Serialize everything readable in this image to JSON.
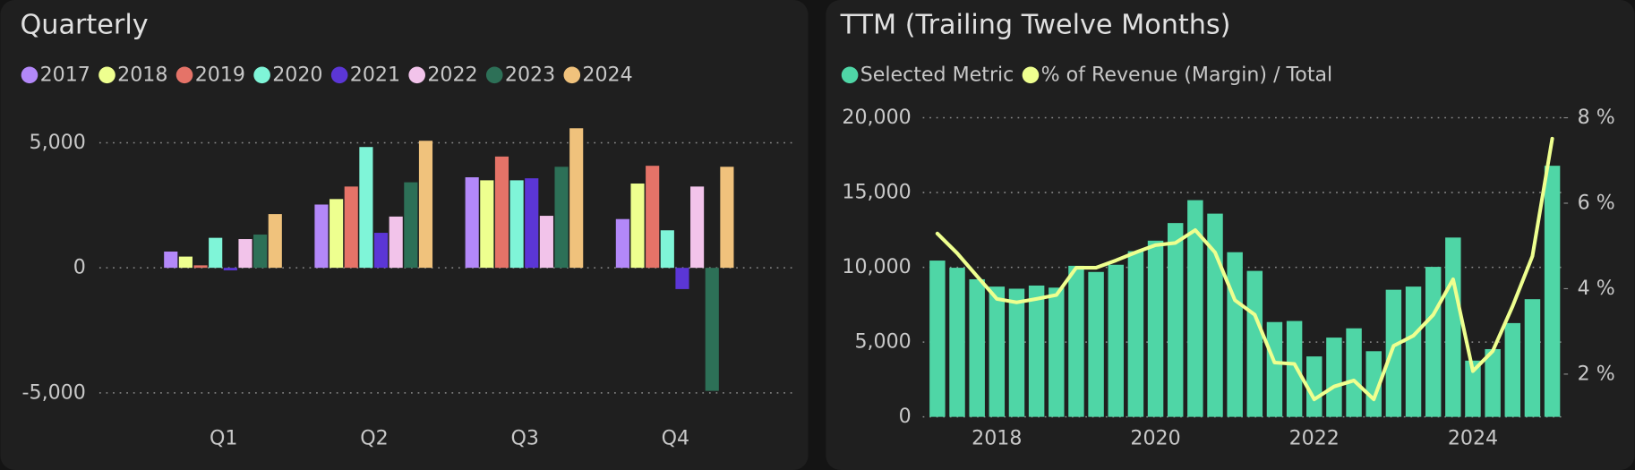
{
  "chart_data": [
    {
      "type": "bar",
      "title": "Quarterly",
      "categories": [
        "Q1",
        "Q2",
        "Q3",
        "Q4"
      ],
      "series": [
        {
          "name": "2017",
          "color": "#b388f9",
          "values": [
            650,
            2530,
            3620,
            1950
          ]
        },
        {
          "name": "2018",
          "color": "#eeff8f",
          "values": [
            450,
            2750,
            3500,
            3370
          ]
        },
        {
          "name": "2019",
          "color": "#e57368",
          "values": [
            100,
            3250,
            4450,
            4080
          ]
        },
        {
          "name": "2020",
          "color": "#7ff5d8",
          "values": [
            1200,
            4830,
            3500,
            1500
          ]
        },
        {
          "name": "2021",
          "color": "#5b36d6",
          "values": [
            -100,
            1400,
            3580,
            -850
          ]
        },
        {
          "name": "2022",
          "color": "#f2c3ea",
          "values": [
            1150,
            2050,
            2080,
            3250
          ]
        },
        {
          "name": "2023",
          "color": "#2d7057",
          "values": [
            1330,
            3420,
            4040,
            -4920
          ]
        },
        {
          "name": "2024",
          "color": "#f0c27c",
          "values": [
            2150,
            5080,
            5580,
            4040
          ]
        }
      ],
      "ylim": [
        -6000,
        6000
      ],
      "yticks": [
        {
          "value": -5000,
          "label": "-5,000"
        },
        0,
        {
          "value": 5000,
          "label": "5,000"
        }
      ],
      "grid": true
    },
    {
      "type": "bar_line",
      "title": "TTM (Trailing Twelve Months)",
      "categories": [
        null,
        null,
        null,
        "2018",
        null,
        null,
        null,
        null,
        null,
        null,
        null,
        "2020",
        null,
        null,
        null,
        null,
        null,
        null,
        null,
        "2022",
        null,
        null,
        null,
        null,
        null,
        null,
        null,
        "2024",
        null,
        null,
        null,
        null
      ],
      "series": [
        {
          "name": "Selected Metric",
          "color": "#4fd6a6",
          "type": "bar",
          "values": [
            10450,
            9970,
            9200,
            8710,
            8570,
            8780,
            8640,
            10100,
            9690,
            10170,
            11080,
            11780,
            12960,
            14490,
            13590,
            11010,
            9760,
            6340,
            6410,
            4040,
            5300,
            5920,
            4390,
            8500,
            8710,
            10030,
            11990,
            3760,
            4530,
            6270,
            7870,
            16790
          ]
        },
        {
          "name": "% of Revenue (Margin) / Total",
          "color": "#eeff8f",
          "type": "line",
          "axis": "y2",
          "values": [
            5.29,
            4.83,
            4.29,
            3.76,
            3.68,
            3.76,
            3.85,
            4.49,
            4.49,
            4.66,
            4.85,
            5.02,
            5.07,
            5.37,
            4.85,
            3.73,
            3.39,
            2.27,
            2.24,
            1.41,
            1.71,
            1.85,
            1.41,
            2.66,
            2.9,
            3.39,
            4.22,
            2.07,
            2.54,
            3.59,
            4.76,
            7.51
          ]
        }
      ],
      "ylim": [
        0,
        20000
      ],
      "yticks": [
        0,
        {
          "value": 5000,
          "label": "5,000"
        },
        {
          "value": 10000,
          "label": "10,000"
        },
        {
          "value": 15000,
          "label": "15,000"
        },
        {
          "value": 20000,
          "label": "20,000"
        }
      ],
      "y2lim": [
        1,
        8
      ],
      "y2ticks": [
        {
          "value": 2,
          "label": "2 %"
        },
        {
          "value": 4,
          "label": "4 %"
        },
        {
          "value": 6,
          "label": "6 %"
        },
        {
          "value": 8,
          "label": "8 %"
        }
      ],
      "grid": true
    }
  ]
}
